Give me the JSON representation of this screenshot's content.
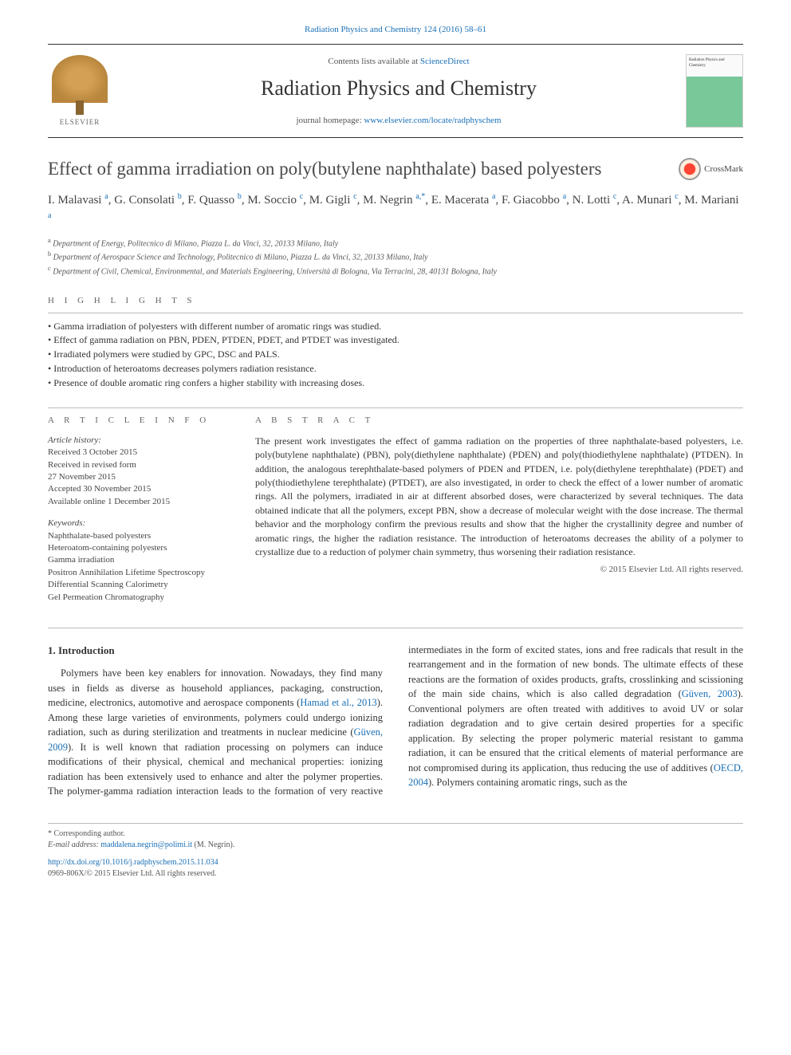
{
  "header": {
    "top_citation": "Radiation Physics and Chemistry 124 (2016) 58–61",
    "contents_prefix": "Contents lists available at ",
    "contents_link": "ScienceDirect",
    "journal_title": "Radiation Physics and Chemistry",
    "homepage_label": "journal homepage: ",
    "homepage_url": "www.elsevier.com/locate/radphyschem",
    "publisher_name": "ELSEVIER",
    "cover_text": "Radiation Physics and Chemistry"
  },
  "crossmark_label": "CrossMark",
  "article": {
    "title": "Effect of gamma irradiation on poly(butylene naphthalate) based polyesters",
    "authors_html": "I. Malavasi <sup>a</sup>, G. Consolati <sup>b</sup>, F. Quasso <sup>b</sup>, M. Soccio <sup>c</sup>, M. Gigli <sup>c</sup>, M. Negrin <sup>a,*</sup>, E. Macerata <sup>a</sup>, F. Giacobbo <sup>a</sup>, N. Lotti <sup>c</sup>, A. Munari <sup>c</sup>, M. Mariani <sup>a</sup>",
    "affiliations": [
      {
        "sup": "a",
        "text": "Department of Energy, Politecnico di Milano, Piazza L. da Vinci, 32, 20133 Milano, Italy"
      },
      {
        "sup": "b",
        "text": "Department of Aerospace Science and Technology, Politecnico di Milano, Piazza L. da Vinci, 32, 20133 Milano, Italy"
      },
      {
        "sup": "c",
        "text": "Department of Civil, Chemical, Environmental, and Materials Engineering, Università di Bologna, Via Terracini, 28, 40131 Bologna, Italy"
      }
    ]
  },
  "highlights": {
    "label": "H I G H L I G H T S",
    "items": [
      "Gamma irradiation of polyesters with different number of aromatic rings was studied.",
      "Effect of gamma radiation on PBN, PDEN, PTDEN, PDET, and PTDET was investigated.",
      "Irradiated polymers were studied by GPC, DSC and PALS.",
      "Introduction of heteroatoms decreases polymers radiation resistance.",
      "Presence of double aromatic ring confers a higher stability with increasing doses."
    ]
  },
  "article_info": {
    "label": "A R T I C L E  I N F O",
    "history_label": "Article history:",
    "history_lines": [
      "Received 3 October 2015",
      "Received in revised form",
      "27 November 2015",
      "Accepted 30 November 2015",
      "Available online 1 December 2015"
    ],
    "keywords_label": "Keywords:",
    "keywords": [
      "Naphthalate-based polyesters",
      "Heteroatom-containing polyesters",
      "Gamma irradiation",
      "Positron Annihilation Lifetime Spectroscopy",
      "Differential Scanning Calorimetry",
      "Gel Permeation Chromatography"
    ]
  },
  "abstract": {
    "label": "A B S T R A C T",
    "text": "The present work investigates the effect of gamma radiation on the properties of three naphthalate-based polyesters, i.e. poly(butylene naphthalate) (PBN), poly(diethylene naphthalate) (PDEN) and poly(thiodiethylene naphthalate) (PTDEN). In addition, the analogous terephthalate-based polymers of PDEN and PTDEN, i.e. poly(diethylene terephthalate) (PDET) and poly(thiodiethylene terephthalate) (PTDET), are also investigated, in order to check the effect of a lower number of aromatic rings. All the polymers, irradiated in air at different absorbed doses, were characterized by several techniques. The data obtained indicate that all the polymers, except PBN, show a decrease of molecular weight with the dose increase. The thermal behavior and the morphology confirm the previous results and show that the higher the crystallinity degree and number of aromatic rings, the higher the radiation resistance. The introduction of heteroatoms decreases the ability of a polymer to crystallize due to a reduction of polymer chain symmetry, thus worsening their radiation resistance.",
    "copyright": "© 2015 Elsevier Ltd. All rights reserved."
  },
  "body": {
    "heading": "1. Introduction",
    "p1_before": "Polymers have been key enablers for innovation. Nowadays, they find many uses in fields as diverse as household appliances, packaging, construction, medicine, electronics, automotive and aerospace components (",
    "ref1": "Hamad et al., 2013",
    "p1_mid1": "). Among these large varieties of environments, polymers could undergo ionizing radiation, such as during sterilization and treatments in nuclear medicine (",
    "ref2": "Güven, 2009",
    "p1_after": "). It is well known that radiation processing on polymers can induce modifications of their physical, chemical and mechanical properties: ionizing radiation has been",
    "p2_before": "extensively used to enhance and alter the polymer properties. The polymer-gamma radiation interaction leads to the formation of very reactive intermediates in the form of excited states, ions and free radicals that result in the rearrangement and in the formation of new bonds. The ultimate effects of these reactions are the formation of oxides products, grafts, crosslinking and scissioning of the main side chains, which is also called degradation (",
    "ref3": "Güven, 2003",
    "p2_mid": "). Conventional polymers are often treated with additives to avoid UV or solar radiation degradation and to give certain desired properties for a specific application. By selecting the proper polymeric material resistant to gamma radiation, it can be ensured that the critical elements of material performance are not compromised during its application, thus reducing the use of additives (",
    "ref4": "OECD, 2004",
    "p2_after": "). Polymers containing aromatic rings, such as the"
  },
  "footer": {
    "corr_label": "* Corresponding author.",
    "email_label": "E-mail address: ",
    "email": "maddalena.negrin@polimi.it",
    "email_suffix": " (M. Negrin).",
    "doi": "http://dx.doi.org/10.1016/j.radphyschem.2015.11.034",
    "issn_line": "0969-806X/© 2015 Elsevier Ltd. All rights reserved."
  },
  "colors": {
    "link": "#1a6fb5",
    "text": "#333333",
    "muted": "#555555",
    "border": "#bbbbbb"
  }
}
